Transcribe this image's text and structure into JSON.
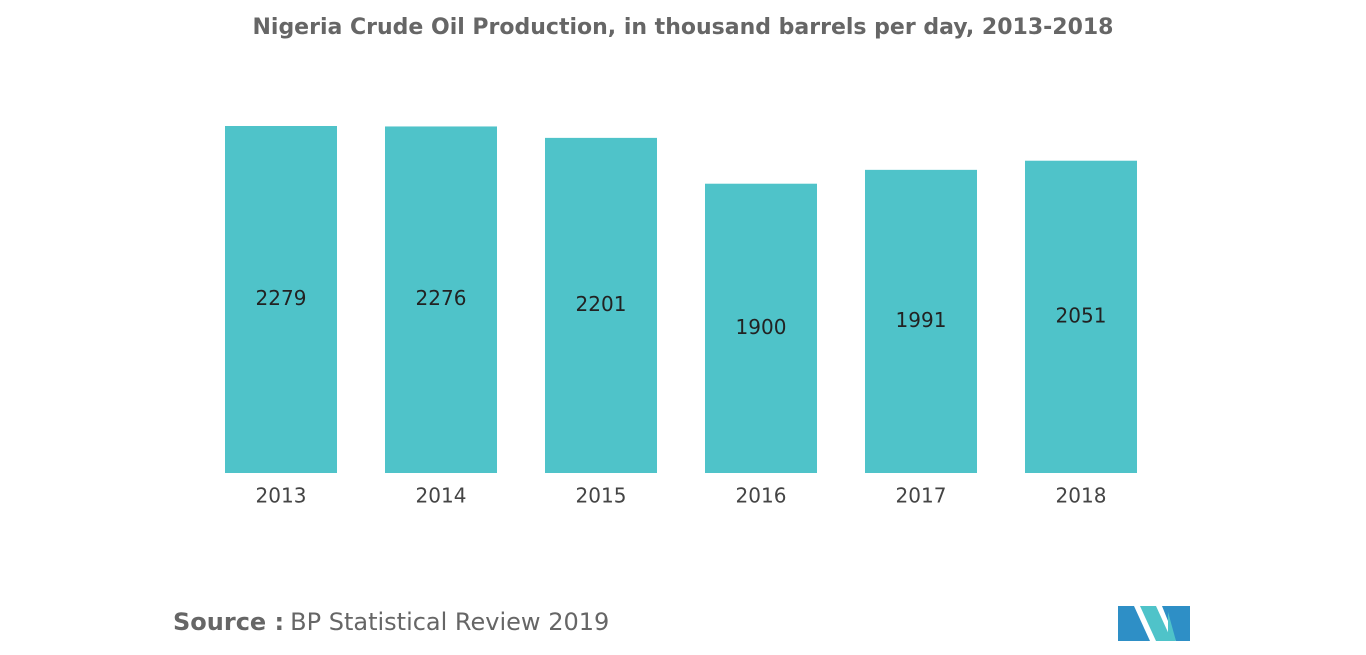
{
  "chart_data": {
    "type": "bar",
    "title": "Nigeria Crude Oil Production, in thousand barrels per day, 2013-2018",
    "categories": [
      "2013",
      "2014",
      "2015",
      "2016",
      "2017",
      "2018"
    ],
    "values": [
      2279,
      2276,
      2201,
      1900,
      1991,
      2051
    ],
    "color": "#4fc3c9"
  },
  "source": {
    "label": "Source :",
    "text": "BP Statistical Review 2019"
  }
}
